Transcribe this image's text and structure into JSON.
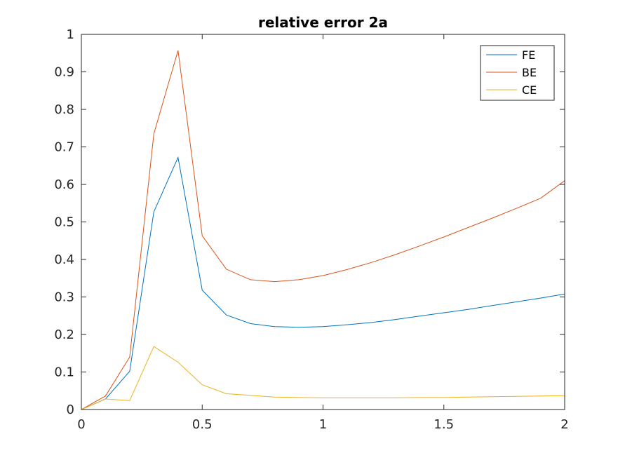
{
  "chart_data": {
    "type": "line",
    "title": "relative error 2a",
    "xlabel": "",
    "ylabel": "",
    "xlim": [
      0,
      2
    ],
    "ylim": [
      0,
      1
    ],
    "xticks": [
      0,
      0.5,
      1,
      1.5,
      2
    ],
    "xtick_labels": [
      "0",
      "0.5",
      "1",
      "1.5",
      "2"
    ],
    "yticks": [
      0,
      0.1,
      0.2,
      0.3,
      0.4,
      0.5,
      0.6,
      0.7,
      0.8,
      0.9,
      1
    ],
    "ytick_labels": [
      "0",
      "0.1",
      "0.2",
      "0.3",
      "0.4",
      "0.5",
      "0.6",
      "0.7",
      "0.8",
      "0.9",
      "1"
    ],
    "grid": false,
    "legend_position": "top-right",
    "x": [
      0,
      0.1,
      0.2,
      0.3,
      0.4,
      0.5,
      0.6,
      0.7,
      0.8,
      0.9,
      1.0,
      1.1,
      1.2,
      1.3,
      1.4,
      1.5,
      1.6,
      1.7,
      1.8,
      1.9,
      2.0
    ],
    "series": [
      {
        "name": "FE",
        "color": "#0072BD",
        "values": [
          0,
          0.028,
          0.102,
          0.527,
          0.672,
          0.318,
          0.252,
          0.229,
          0.221,
          0.219,
          0.221,
          0.226,
          0.232,
          0.24,
          0.249,
          0.258,
          0.267,
          0.277,
          0.287,
          0.297,
          0.308
        ]
      },
      {
        "name": "BE",
        "color": "#D95319",
        "values": [
          0,
          0.036,
          0.14,
          0.735,
          0.957,
          0.463,
          0.374,
          0.346,
          0.341,
          0.346,
          0.357,
          0.373,
          0.392,
          0.413,
          0.436,
          0.46,
          0.485,
          0.51,
          0.536,
          0.563,
          0.61
        ]
      },
      {
        "name": "CE",
        "color": "#EDB120",
        "values": [
          0,
          0.028,
          0.024,
          0.168,
          0.126,
          0.066,
          0.042,
          0.038,
          0.033,
          0.032,
          0.031,
          0.031,
          0.031,
          0.031,
          0.032,
          0.032,
          0.033,
          0.034,
          0.035,
          0.036,
          0.037
        ]
      }
    ]
  }
}
